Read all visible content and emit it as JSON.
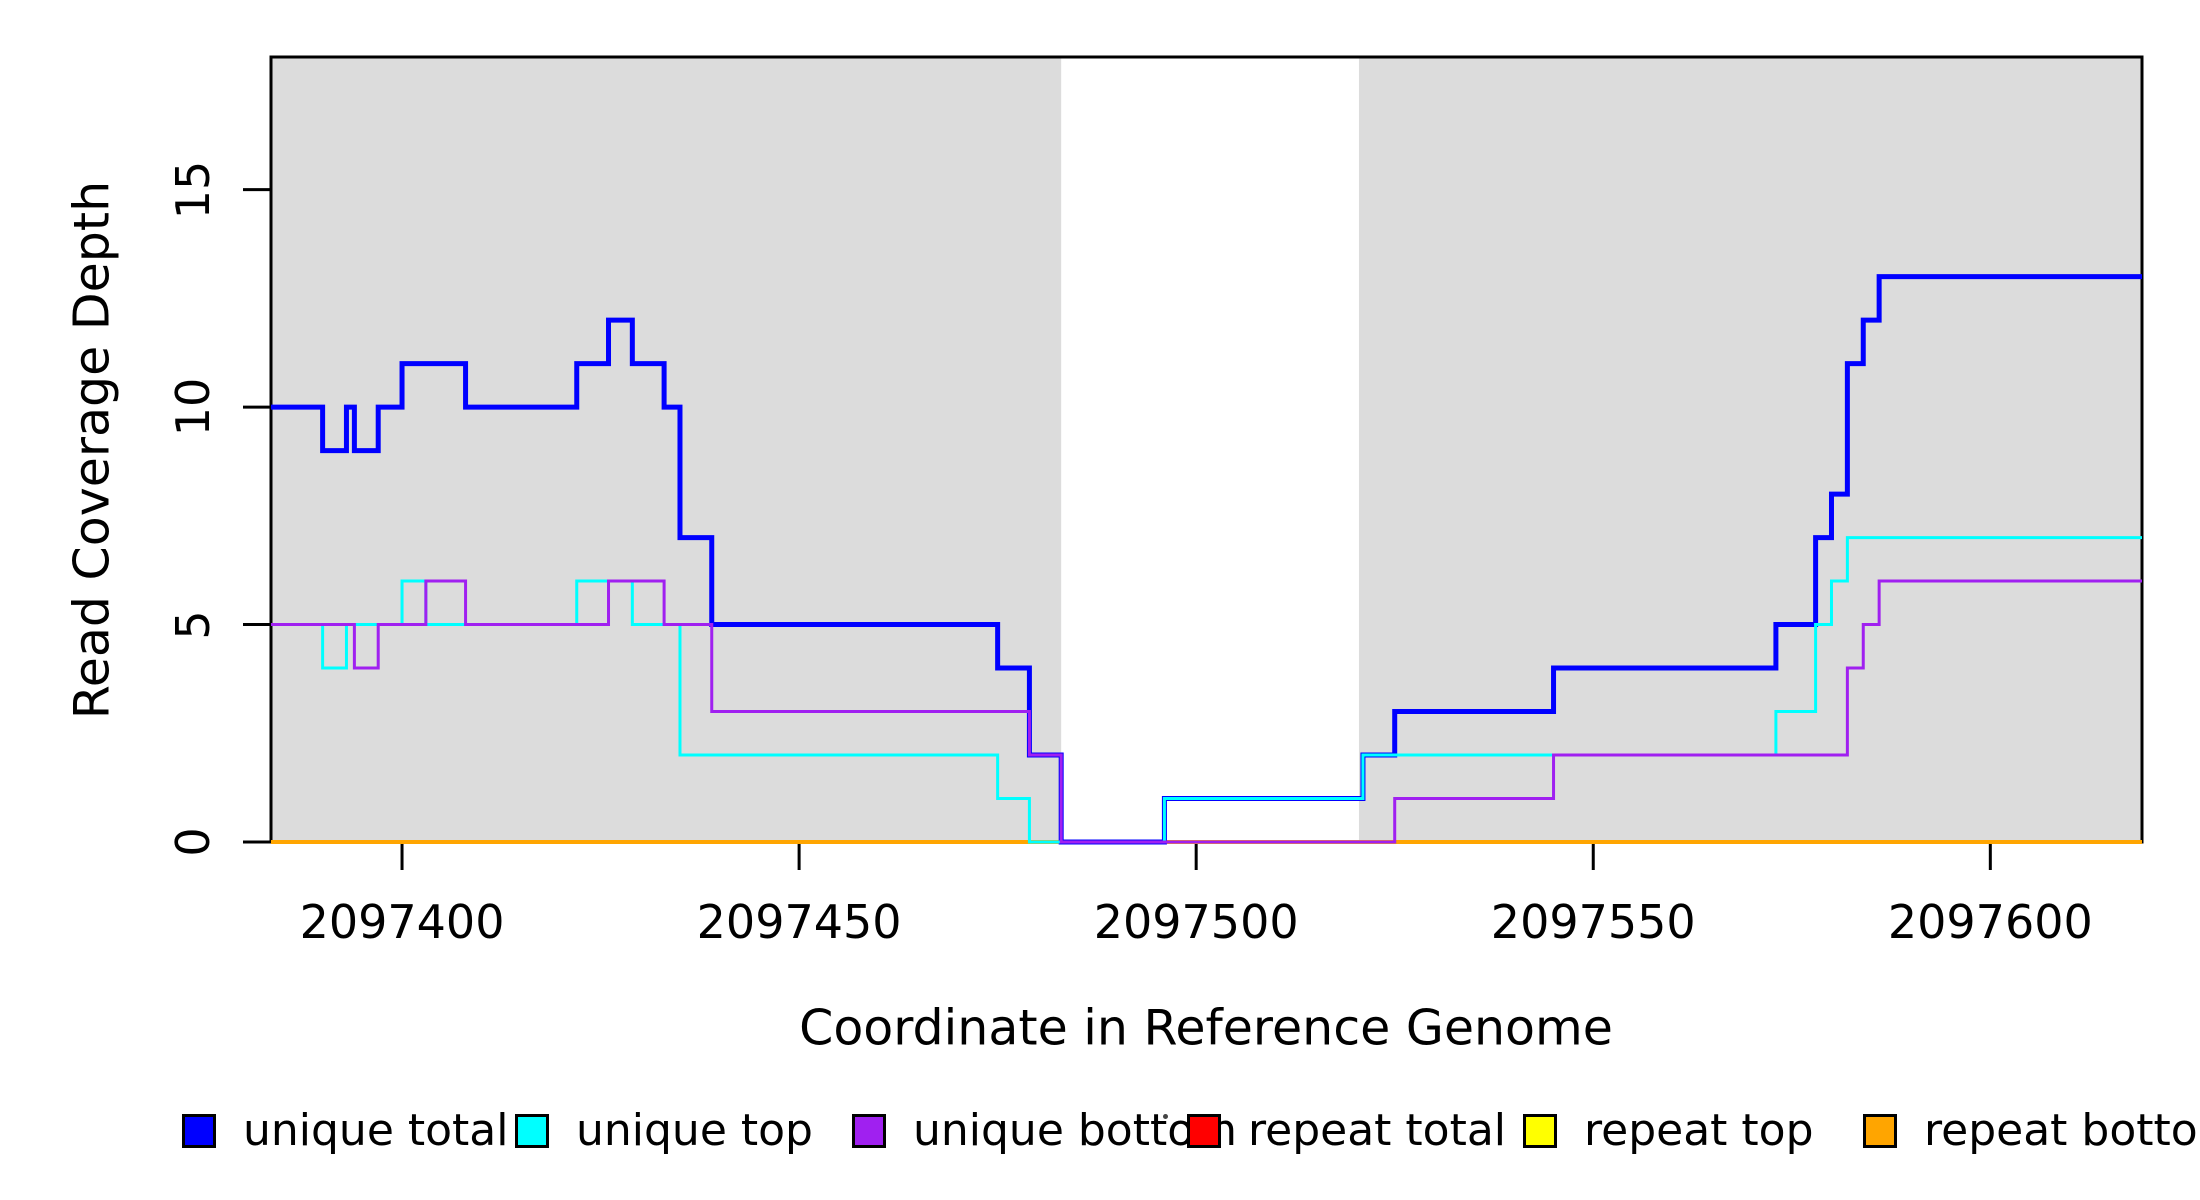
{
  "y_axis": {
    "label": "Read Coverage Depth",
    "ticks": [
      "0",
      "5",
      "10",
      "15"
    ],
    "tick_values": [
      0,
      5,
      10,
      15
    ]
  },
  "x_axis": {
    "label": "Coordinate in Reference Genome",
    "ticks": [
      "2097400",
      "2097450",
      "2097500",
      "2097550",
      "2097600"
    ],
    "tick_values": [
      2097400,
      2097450,
      2097500,
      2097550,
      2097600
    ]
  },
  "legend": {
    "items": [
      {
        "label": "unique total",
        "color": "#0000ff"
      },
      {
        "label": "unique top",
        "color": "#00ffff"
      },
      {
        "label": "unique bottom",
        "color": "#a020f0"
      },
      {
        "label": "repeat total",
        "color": "#ff0000"
      },
      {
        "label": "repeat top",
        "color": "#ffff00"
      },
      {
        "label": "repeat bottom",
        "color": "#ffa500"
      }
    ]
  },
  "chart_data": {
    "type": "line",
    "subtype": "step",
    "title": "",
    "xlabel": "Coordinate in Reference Genome",
    "ylabel": "Read Coverage Depth",
    "xlim": [
      2097383.5,
      2097619.1
    ],
    "ylim": [
      0,
      18.05
    ],
    "x_ticks": [
      2097400,
      2097450,
      2097500,
      2097550,
      2097600
    ],
    "y_ticks": [
      0,
      5,
      10,
      15
    ],
    "grid": false,
    "legend_position": "bottom",
    "background_regions": {
      "color": "#dcdcdc",
      "x_intervals": [
        [
          2097383.5,
          2097483
        ],
        [
          2097520.5,
          2097619.1
        ]
      ]
    },
    "draw_order": [
      "repeat total",
      "repeat top",
      "repeat bottom",
      "unique total",
      "unique top",
      "unique bottom"
    ],
    "series": [
      {
        "name": "unique total",
        "color": "#0000ff",
        "width": 5,
        "steps": [
          [
            2097383.5,
            10
          ],
          [
            2097390,
            9
          ],
          [
            2097393,
            10
          ],
          [
            2097394,
            9
          ],
          [
            2097397,
            10
          ],
          [
            2097400,
            11
          ],
          [
            2097408,
            10
          ],
          [
            2097422,
            11
          ],
          [
            2097426,
            12
          ],
          [
            2097429,
            11
          ],
          [
            2097433,
            10
          ],
          [
            2097435,
            7
          ],
          [
            2097439,
            5
          ],
          [
            2097475,
            4
          ],
          [
            2097479,
            2
          ],
          [
            2097483,
            0
          ],
          [
            2097496,
            1
          ],
          [
            2097521,
            2
          ],
          [
            2097525,
            3
          ],
          [
            2097545,
            4
          ],
          [
            2097573,
            5
          ],
          [
            2097578,
            7
          ],
          [
            2097580,
            8
          ],
          [
            2097582,
            11
          ],
          [
            2097584,
            12
          ],
          [
            2097586,
            13
          ]
        ]
      },
      {
        "name": "unique top",
        "color": "#00ffff",
        "width": 3,
        "steps": [
          [
            2097383.5,
            5
          ],
          [
            2097390,
            4
          ],
          [
            2097393,
            5
          ],
          [
            2097400,
            6
          ],
          [
            2097403,
            5
          ],
          [
            2097422,
            6
          ],
          [
            2097429,
            5
          ],
          [
            2097435,
            2
          ],
          [
            2097475,
            1
          ],
          [
            2097479,
            0
          ],
          [
            2097496,
            1
          ],
          [
            2097521,
            2
          ],
          [
            2097573,
            3
          ],
          [
            2097578,
            5
          ],
          [
            2097580,
            6
          ],
          [
            2097582,
            7
          ]
        ]
      },
      {
        "name": "unique bottom",
        "color": "#a020f0",
        "width": 3,
        "steps": [
          [
            2097383.5,
            5
          ],
          [
            2097394,
            4
          ],
          [
            2097397,
            5
          ],
          [
            2097403,
            6
          ],
          [
            2097408,
            5
          ],
          [
            2097426,
            6
          ],
          [
            2097433,
            5
          ],
          [
            2097439,
            3
          ],
          [
            2097479,
            2
          ],
          [
            2097483,
            0
          ],
          [
            2097525,
            1
          ],
          [
            2097545,
            2
          ],
          [
            2097582,
            4
          ],
          [
            2097584,
            5
          ],
          [
            2097586,
            6
          ]
        ]
      },
      {
        "name": "repeat total",
        "color": "#ff0000",
        "width": 3,
        "steps": [
          [
            2097383.5,
            0
          ]
        ]
      },
      {
        "name": "repeat top",
        "color": "#ffff00",
        "width": 3,
        "steps": [
          [
            2097383.5,
            0
          ]
        ]
      },
      {
        "name": "repeat bottom",
        "color": "#ffa500",
        "width": 4,
        "steps": [
          [
            2097383.5,
            0
          ]
        ]
      }
    ]
  }
}
